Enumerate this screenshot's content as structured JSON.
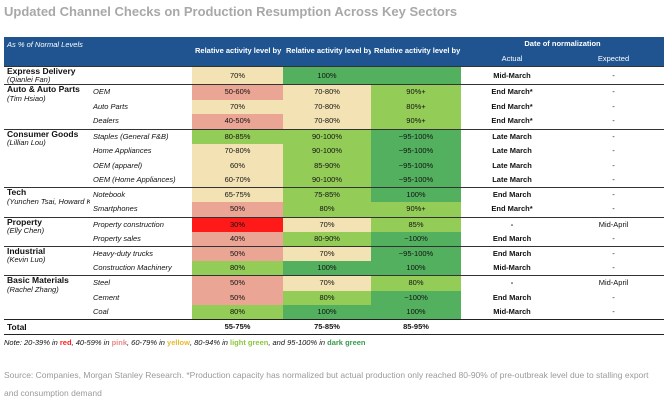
{
  "title": "Updated Channel Checks on Production Resumption Across Key Sectors",
  "header": {
    "row_label": "As % of Normal Levels",
    "col_feb": "Relative activity level by end-Feb",
    "col_midmar": "Relative activity level by mid-Mar",
    "col_endmar": "Relative activity level by end-Mar",
    "col_norm": "Date of normalization",
    "col_actual": "Actual",
    "col_expected": "Expected"
  },
  "colors": {
    "header": "#1f5490",
    "red": "#ff1a1a",
    "pink": "#eba595",
    "yellow": "#f3e3b4",
    "light_green": "#94cc58",
    "dark_green": "#52b05e"
  },
  "sectors": [
    {
      "name": "Express Delivery",
      "analyst": "(Qianlei Fan)",
      "rows": [
        {
          "item": "",
          "feb": "70%",
          "feb_c": "yellow",
          "mid": "100%",
          "mid_c": "dark_green",
          "end": "",
          "end_c": "dark_green",
          "actual": "Mid-March",
          "expected": "-"
        }
      ]
    },
    {
      "name": "Auto & Auto Parts",
      "analyst": "(Tim Hsiao)",
      "rows": [
        {
          "item": "OEM",
          "feb": "50-60%",
          "feb_c": "pink",
          "mid": "70-80%",
          "mid_c": "yellow",
          "end": "90%+",
          "end_c": "light_green",
          "actual": "End March*",
          "expected": "-"
        },
        {
          "item": "Auto Parts",
          "feb": "70%",
          "feb_c": "yellow",
          "mid": "70-80%",
          "mid_c": "yellow",
          "end": "80%+",
          "end_c": "light_green",
          "actual": "End March*",
          "expected": "-"
        },
        {
          "item": "Dealers",
          "feb": "40-50%",
          "feb_c": "pink",
          "mid": "70-80%",
          "mid_c": "yellow",
          "end": "90%+",
          "end_c": "light_green",
          "actual": "End March*",
          "expected": "-"
        }
      ]
    },
    {
      "name": "Consumer Goods",
      "analyst": "(Lillian Lou)",
      "rows": [
        {
          "item": "Staples (General F&B)",
          "feb": "80-85%",
          "feb_c": "light_green",
          "mid": "90-100%",
          "mid_c": "light_green",
          "end": "~95-100%",
          "end_c": "dark_green",
          "actual": "Late March",
          "expected": "-"
        },
        {
          "item": "Home Appliances",
          "feb": "70-80%",
          "feb_c": "yellow",
          "mid": "90-100%",
          "mid_c": "light_green",
          "end": "~95-100%",
          "end_c": "dark_green",
          "actual": "Late March",
          "expected": "-"
        },
        {
          "item": "OEM (apparel)",
          "feb": "60%",
          "feb_c": "yellow",
          "mid": "85-90%",
          "mid_c": "light_green",
          "end": "~95-100%",
          "end_c": "dark_green",
          "actual": "Late March",
          "expected": "-"
        },
        {
          "item": "OEM (Home Appliances)",
          "feb": "60-70%",
          "feb_c": "yellow",
          "mid": "90-100%",
          "mid_c": "light_green",
          "end": "~95-100%",
          "end_c": "dark_green",
          "actual": "Late March",
          "expected": "-"
        }
      ]
    },
    {
      "name": "Tech",
      "analyst": "(Yunchen Tsai, Howard Kao)",
      "rows": [
        {
          "item": "Notebook",
          "feb": "65-75%",
          "feb_c": "yellow",
          "mid": "75-85%",
          "mid_c": "light_green",
          "end": "100%",
          "end_c": "dark_green",
          "actual": "End March",
          "expected": "-"
        },
        {
          "item": "Smartphones",
          "feb": "50%",
          "feb_c": "pink",
          "mid": "80%",
          "mid_c": "light_green",
          "end": "90%+",
          "end_c": "light_green",
          "actual": "End March*",
          "expected": "-"
        }
      ]
    },
    {
      "name": "Property",
      "analyst": "(Elly Chen)",
      "rows": [
        {
          "item": "Property construction",
          "feb": "30%",
          "feb_c": "red",
          "mid": "70%",
          "mid_c": "yellow",
          "end": "85%",
          "end_c": "light_green",
          "actual": "-",
          "expected": "Mid-April"
        },
        {
          "item": "Property sales",
          "feb": "40%",
          "feb_c": "pink",
          "mid": "80-90%",
          "mid_c": "light_green",
          "end": "~100%",
          "end_c": "dark_green",
          "actual": "End March",
          "expected": "-"
        }
      ]
    },
    {
      "name": "Industrial",
      "analyst": "(Kevin Luo)",
      "rows": [
        {
          "item": "Heavy-duty trucks",
          "feb": "50%",
          "feb_c": "pink",
          "mid": "70%",
          "mid_c": "yellow",
          "end": "~95-100%",
          "end_c": "dark_green",
          "actual": "End March",
          "expected": "-"
        },
        {
          "item": "Construction Machinery",
          "feb": "80%",
          "feb_c": "light_green",
          "mid": "100%",
          "mid_c": "dark_green",
          "end": "100%",
          "end_c": "dark_green",
          "actual": "Mid-March",
          "expected": "-"
        }
      ]
    },
    {
      "name": "Basic Materials",
      "analyst": "(Rachel Zhang)",
      "rows": [
        {
          "item": "Steel",
          "feb": "50%",
          "feb_c": "pink",
          "mid": "70%",
          "mid_c": "yellow",
          "end": "80%",
          "end_c": "light_green",
          "actual": "-",
          "expected": "Mid-April"
        },
        {
          "item": "Cement",
          "feb": "50%",
          "feb_c": "pink",
          "mid": "80%",
          "mid_c": "light_green",
          "end": "~100%",
          "end_c": "dark_green",
          "actual": "End March",
          "expected": "-"
        },
        {
          "item": "Coal",
          "feb": "80%",
          "feb_c": "light_green",
          "mid": "100%",
          "mid_c": "dark_green",
          "end": "100%",
          "end_c": "dark_green",
          "actual": "Mid-March",
          "expected": "-"
        }
      ]
    }
  ],
  "total": {
    "label": "Total",
    "feb": "55-75%",
    "mid": "75-85%",
    "end": "85-95%"
  },
  "note": {
    "prefix": "Note: 20-39% in ",
    "red": "red",
    "sep1": ", 40-59% in ",
    "pink": "pink",
    "sep2": ", 60-79% in ",
    "yellow": "yellow",
    "sep3": ", 80-94%  in ",
    "light_green": "light green",
    "sep4": ", and 95-100%  in ",
    "dark_green": "dark green"
  },
  "source": "Source: Companies, Morgan Stanley Research. *Production capacity has normalized but actual production only reached 80-90% of pre-outbreak level due to stalling export and consumption demand"
}
